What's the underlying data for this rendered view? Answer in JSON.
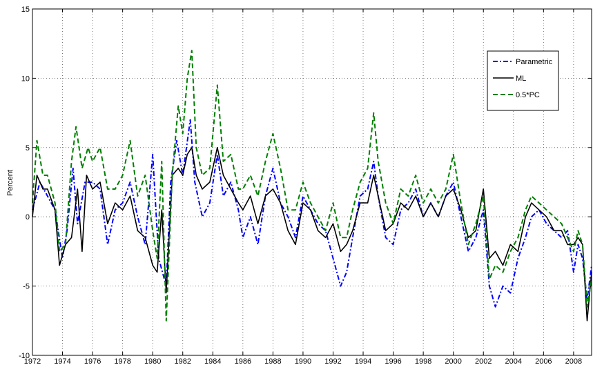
{
  "chart_data": {
    "type": "line",
    "title": "",
    "xlabel": "",
    "ylabel": "Percent",
    "xlim": [
      1972,
      2009.2
    ],
    "ylim": [
      -10,
      15
    ],
    "xticks": [
      1972,
      1974,
      1976,
      1978,
      1980,
      1982,
      1984,
      1986,
      1988,
      1990,
      1992,
      1994,
      1996,
      1998,
      2000,
      2002,
      2004,
      2006,
      2008
    ],
    "yticks": [
      -10,
      -5,
      0,
      5,
      10,
      15
    ],
    "grid": true,
    "legend_position": "top-right",
    "series": [
      {
        "name": "Parametric",
        "color": "#0000ff",
        "style": "dash-dot",
        "points": [
          [
            1972.0,
            0.5
          ],
          [
            1972.5,
            2.5
          ],
          [
            1973.0,
            1.5
          ],
          [
            1973.5,
            0.5
          ],
          [
            1974.0,
            -3.0
          ],
          [
            1974.3,
            -1.0
          ],
          [
            1974.7,
            3.5
          ],
          [
            1975.0,
            -0.5
          ],
          [
            1975.5,
            2.5
          ],
          [
            1976.0,
            2.5
          ],
          [
            1976.5,
            2.0
          ],
          [
            1977.0,
            -2.0
          ],
          [
            1977.5,
            0.5
          ],
          [
            1978.0,
            1.0
          ],
          [
            1978.5,
            2.5
          ],
          [
            1979.0,
            0.0
          ],
          [
            1979.5,
            -2.0
          ],
          [
            1980.0,
            4.5
          ],
          [
            1980.4,
            -3.0
          ],
          [
            1980.9,
            -5.0
          ],
          [
            1981.2,
            2.5
          ],
          [
            1981.6,
            5.5
          ],
          [
            1982.0,
            3.0
          ],
          [
            1982.5,
            7.0
          ],
          [
            1982.8,
            2.5
          ],
          [
            1983.3,
            0.0
          ],
          [
            1983.8,
            1.0
          ],
          [
            1984.3,
            4.5
          ],
          [
            1984.7,
            1.5
          ],
          [
            1985.2,
            2.5
          ],
          [
            1985.7,
            0.5
          ],
          [
            1986.0,
            -1.5
          ],
          [
            1986.5,
            0.0
          ],
          [
            1987.0,
            -2.0
          ],
          [
            1987.5,
            1.5
          ],
          [
            1988.0,
            3.5
          ],
          [
            1988.5,
            1.0
          ],
          [
            1989.0,
            0.0
          ],
          [
            1989.5,
            -1.5
          ],
          [
            1990.0,
            1.5
          ],
          [
            1990.5,
            0.5
          ],
          [
            1991.0,
            -0.5
          ],
          [
            1991.5,
            -1.0
          ],
          [
            1992.0,
            -3.0
          ],
          [
            1992.5,
            -5.0
          ],
          [
            1992.9,
            -4.0
          ],
          [
            1993.3,
            -1.5
          ],
          [
            1993.8,
            1.5
          ],
          [
            1994.3,
            2.0
          ],
          [
            1994.7,
            4.0
          ],
          [
            1995.0,
            1.5
          ],
          [
            1995.5,
            -1.5
          ],
          [
            1996.0,
            -2.0
          ],
          [
            1996.5,
            0.5
          ],
          [
            1997.0,
            1.0
          ],
          [
            1997.5,
            2.0
          ],
          [
            1998.0,
            0.0
          ],
          [
            1998.5,
            1.0
          ],
          [
            1999.0,
            0.0
          ],
          [
            1999.5,
            1.5
          ],
          [
            2000.0,
            2.5
          ],
          [
            2000.5,
            0.0
          ],
          [
            2001.0,
            -2.5
          ],
          [
            2001.5,
            -1.5
          ],
          [
            2002.0,
            0.5
          ],
          [
            2002.4,
            -5.0
          ],
          [
            2002.8,
            -6.5
          ],
          [
            2003.3,
            -5.0
          ],
          [
            2003.8,
            -5.5
          ],
          [
            2004.3,
            -3.0
          ],
          [
            2004.8,
            -1.5
          ],
          [
            2005.2,
            0.0
          ],
          [
            2005.7,
            0.5
          ],
          [
            2006.2,
            -0.5
          ],
          [
            2006.7,
            -1.0
          ],
          [
            2007.2,
            -1.5
          ],
          [
            2007.6,
            -1.0
          ],
          [
            2008.0,
            -4.0
          ],
          [
            2008.3,
            -2.0
          ],
          [
            2008.6,
            -3.0
          ],
          [
            2008.9,
            -6.0
          ],
          [
            2009.2,
            -3.5
          ]
        ]
      },
      {
        "name": "ML",
        "color": "#000000",
        "style": "solid",
        "points": [
          [
            1972.0,
            0.0
          ],
          [
            1972.3,
            3.0
          ],
          [
            1972.7,
            2.0
          ],
          [
            1973.0,
            2.0
          ],
          [
            1973.5,
            0.5
          ],
          [
            1973.8,
            -3.5
          ],
          [
            1974.2,
            -2.0
          ],
          [
            1974.6,
            -1.5
          ],
          [
            1975.0,
            2.0
          ],
          [
            1975.3,
            -2.5
          ],
          [
            1975.6,
            3.0
          ],
          [
            1976.0,
            2.0
          ],
          [
            1976.5,
            2.5
          ],
          [
            1977.0,
            -0.5
          ],
          [
            1977.5,
            1.0
          ],
          [
            1978.0,
            0.5
          ],
          [
            1978.5,
            1.5
          ],
          [
            1979.0,
            -1.0
          ],
          [
            1979.5,
            -1.5
          ],
          [
            1980.0,
            -3.5
          ],
          [
            1980.3,
            -4.0
          ],
          [
            1980.6,
            0.5
          ],
          [
            1980.9,
            -5.5
          ],
          [
            1981.3,
            3.0
          ],
          [
            1981.7,
            3.5
          ],
          [
            1982.0,
            3.0
          ],
          [
            1982.3,
            4.5
          ],
          [
            1982.6,
            5.0
          ],
          [
            1982.9,
            3.0
          ],
          [
            1983.3,
            2.0
          ],
          [
            1983.8,
            2.5
          ],
          [
            1984.3,
            5.0
          ],
          [
            1984.7,
            3.0
          ],
          [
            1985.2,
            2.0
          ],
          [
            1985.7,
            1.0
          ],
          [
            1986.0,
            0.5
          ],
          [
            1986.5,
            1.5
          ],
          [
            1987.0,
            -0.5
          ],
          [
            1987.5,
            1.5
          ],
          [
            1988.0,
            2.0
          ],
          [
            1988.5,
            1.0
          ],
          [
            1989.0,
            -1.0
          ],
          [
            1989.5,
            -2.0
          ],
          [
            1990.0,
            1.0
          ],
          [
            1990.5,
            0.5
          ],
          [
            1991.0,
            -1.0
          ],
          [
            1991.5,
            -1.5
          ],
          [
            1992.0,
            -0.5
          ],
          [
            1992.5,
            -2.5
          ],
          [
            1992.9,
            -2.0
          ],
          [
            1993.3,
            -1.0
          ],
          [
            1993.8,
            1.0
          ],
          [
            1994.3,
            1.0
          ],
          [
            1994.7,
            3.0
          ],
          [
            1995.0,
            1.5
          ],
          [
            1995.5,
            -1.0
          ],
          [
            1996.0,
            -0.5
          ],
          [
            1996.5,
            1.0
          ],
          [
            1997.0,
            0.5
          ],
          [
            1997.5,
            1.5
          ],
          [
            1998.0,
            0.0
          ],
          [
            1998.5,
            1.0
          ],
          [
            1999.0,
            0.0
          ],
          [
            1999.5,
            1.5
          ],
          [
            2000.0,
            2.0
          ],
          [
            2000.5,
            0.5
          ],
          [
            2001.0,
            -1.5
          ],
          [
            2001.5,
            -1.0
          ],
          [
            2002.0,
            2.0
          ],
          [
            2002.4,
            -3.0
          ],
          [
            2002.8,
            -2.5
          ],
          [
            2003.3,
            -3.5
          ],
          [
            2003.8,
            -2.0
          ],
          [
            2004.3,
            -2.5
          ],
          [
            2004.8,
            0.0
          ],
          [
            2005.2,
            1.0
          ],
          [
            2005.7,
            0.5
          ],
          [
            2006.2,
            0.0
          ],
          [
            2006.7,
            -1.0
          ],
          [
            2007.2,
            -1.0
          ],
          [
            2007.6,
            -2.0
          ],
          [
            2008.0,
            -2.0
          ],
          [
            2008.3,
            -1.5
          ],
          [
            2008.6,
            -2.0
          ],
          [
            2008.9,
            -7.5
          ],
          [
            2009.2,
            -4.0
          ]
        ]
      },
      {
        "name": "0.5*PC",
        "color": "#007f00",
        "style": "dashed",
        "points": [
          [
            1972.0,
            1.0
          ],
          [
            1972.3,
            5.5
          ],
          [
            1972.7,
            3.0
          ],
          [
            1973.0,
            3.0
          ],
          [
            1973.5,
            1.0
          ],
          [
            1973.8,
            -2.5
          ],
          [
            1974.2,
            -2.0
          ],
          [
            1974.6,
            4.0
          ],
          [
            1974.9,
            6.5
          ],
          [
            1975.3,
            3.5
          ],
          [
            1975.7,
            5.0
          ],
          [
            1976.0,
            4.0
          ],
          [
            1976.5,
            5.0
          ],
          [
            1977.0,
            2.0
          ],
          [
            1977.5,
            2.0
          ],
          [
            1978.0,
            3.0
          ],
          [
            1978.5,
            5.5
          ],
          [
            1979.0,
            1.5
          ],
          [
            1979.5,
            3.0
          ],
          [
            1980.0,
            -1.0
          ],
          [
            1980.3,
            -3.0
          ],
          [
            1980.6,
            4.0
          ],
          [
            1980.9,
            -7.5
          ],
          [
            1981.3,
            3.0
          ],
          [
            1981.7,
            8.0
          ],
          [
            1982.0,
            6.0
          ],
          [
            1982.3,
            10.0
          ],
          [
            1982.6,
            12.0
          ],
          [
            1982.9,
            5.0
          ],
          [
            1983.3,
            3.0
          ],
          [
            1983.8,
            3.5
          ],
          [
            1984.3,
            9.5
          ],
          [
            1984.7,
            4.0
          ],
          [
            1985.2,
            4.5
          ],
          [
            1985.7,
            2.0
          ],
          [
            1986.0,
            2.0
          ],
          [
            1986.5,
            3.0
          ],
          [
            1987.0,
            1.5
          ],
          [
            1987.5,
            4.0
          ],
          [
            1988.0,
            6.0
          ],
          [
            1988.5,
            3.5
          ],
          [
            1989.0,
            0.5
          ],
          [
            1989.5,
            0.5
          ],
          [
            1990.0,
            2.5
          ],
          [
            1990.5,
            1.0
          ],
          [
            1991.0,
            0.0
          ],
          [
            1991.5,
            -1.0
          ],
          [
            1992.0,
            1.0
          ],
          [
            1992.5,
            -1.5
          ],
          [
            1992.9,
            -1.5
          ],
          [
            1993.3,
            0.5
          ],
          [
            1993.8,
            2.5
          ],
          [
            1994.3,
            3.5
          ],
          [
            1994.7,
            7.5
          ],
          [
            1995.0,
            4.0
          ],
          [
            1995.5,
            1.0
          ],
          [
            1996.0,
            -0.5
          ],
          [
            1996.5,
            2.0
          ],
          [
            1997.0,
            1.5
          ],
          [
            1997.5,
            3.0
          ],
          [
            1998.0,
            1.0
          ],
          [
            1998.5,
            2.0
          ],
          [
            1999.0,
            1.0
          ],
          [
            1999.5,
            2.0
          ],
          [
            2000.0,
            4.5
          ],
          [
            2000.5,
            1.0
          ],
          [
            2001.0,
            -2.0
          ],
          [
            2001.5,
            -0.5
          ],
          [
            2002.0,
            1.5
          ],
          [
            2002.4,
            -4.5
          ],
          [
            2002.8,
            -3.5
          ],
          [
            2003.3,
            -4.0
          ],
          [
            2003.8,
            -2.5
          ],
          [
            2004.3,
            -1.5
          ],
          [
            2004.8,
            0.5
          ],
          [
            2005.2,
            1.5
          ],
          [
            2005.7,
            1.0
          ],
          [
            2006.2,
            0.5
          ],
          [
            2006.7,
            0.0
          ],
          [
            2007.2,
            -0.5
          ],
          [
            2007.6,
            -1.5
          ],
          [
            2008.0,
            -2.5
          ],
          [
            2008.3,
            -1.0
          ],
          [
            2008.6,
            -2.0
          ],
          [
            2008.9,
            -6.5
          ],
          [
            2009.2,
            -4.5
          ]
        ]
      }
    ]
  }
}
